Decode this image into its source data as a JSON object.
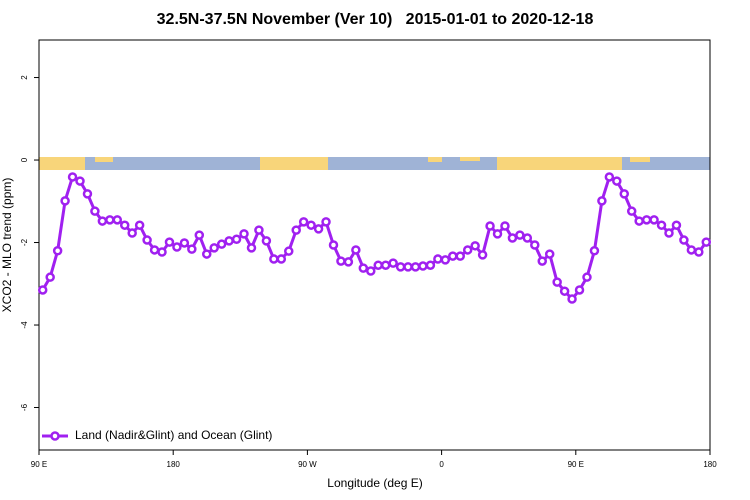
{
  "chart_data": {
    "type": "line",
    "title": "32.5N-37.5N November (Ver 10)   2015-01-01 to 2020-12-18",
    "x_label": "Longitude (deg E)",
    "y_label": "XCO2 - MLO trend (ppm)",
    "xlim": [
      90,
      540
    ],
    "ylim": [
      -7.03,
      2.91
    ],
    "xticks": [
      {
        "value": 90,
        "label": "90 E"
      },
      {
        "value": 180,
        "label": "180"
      },
      {
        "value": 270,
        "label": "90 W"
      },
      {
        "value": 360,
        "label": "0"
      },
      {
        "value": 450,
        "label": "90 E"
      },
      {
        "value": 540,
        "label": "180"
      }
    ],
    "yticks": [
      2,
      0,
      -2,
      -4,
      -6
    ],
    "legend": "bottom-left",
    "x": [
      92.5,
      97.5,
      102.5,
      107.5,
      112.5,
      117.5,
      122.5,
      127.5,
      132.5,
      137.5,
      142.5,
      147.5,
      152.5,
      157.5,
      162.5,
      167.5,
      172.5,
      177.5,
      182.5,
      187.5,
      192.5,
      197.5,
      202.5,
      207.5,
      212.5,
      217.5,
      222.5,
      227.5,
      232.5,
      237.5,
      242.5,
      247.5,
      252.5,
      257.5,
      262.5,
      267.5,
      272.5,
      277.5,
      282.5,
      287.5,
      292.5,
      297.5,
      302.5,
      307.5,
      312.5,
      317.5,
      322.5,
      327.5,
      332.5,
      337.5,
      342.5,
      347.5,
      352.5,
      357.5,
      362.5,
      367.5,
      372.5,
      377.5,
      382.5,
      387.5,
      392.5,
      397.5,
      402.5,
      407.5,
      412.5,
      417.5,
      422.5,
      427.5,
      432.5,
      437.5,
      442.5,
      447.5,
      452.5,
      457.5,
      462.5,
      467.5,
      472.5,
      477.5,
      482.5,
      487.5,
      492.5,
      497.5,
      502.5,
      507.5,
      512.5,
      517.5,
      522.5,
      527.5,
      532.5,
      537.5
    ],
    "series": [
      {
        "name": "Land (Nadir&Glint) and Ocean (Glint)",
        "color": "#a020f0",
        "values": [
          -3.15,
          -2.84,
          -2.2,
          -0.99,
          -0.41,
          -0.51,
          -0.82,
          -1.24,
          -1.48,
          -1.45,
          -1.45,
          -1.58,
          -1.77,
          -1.58,
          -1.94,
          -2.18,
          -2.23,
          -1.99,
          -2.11,
          -2.01,
          -2.16,
          -1.82,
          -2.28,
          -2.13,
          -2.04,
          -1.96,
          -1.92,
          -1.79,
          -2.13,
          -1.7,
          -1.96,
          -2.4,
          -2.4,
          -2.21,
          -1.7,
          -1.5,
          -1.58,
          -1.67,
          -1.5,
          -2.06,
          -2.45,
          -2.47,
          -2.18,
          -2.62,
          -2.69,
          -2.55,
          -2.55,
          -2.5,
          -2.59,
          -2.59,
          -2.59,
          -2.57,
          -2.55,
          -2.4,
          -2.42,
          -2.33,
          -2.33,
          -2.18,
          -2.08,
          -2.3,
          -1.6,
          -1.79,
          -1.6,
          -1.89,
          -1.82,
          -1.89,
          -2.06,
          -2.45,
          -2.28,
          -2.96,
          -3.18,
          -3.37,
          -3.15,
          -2.84,
          -2.2,
          -0.99,
          -0.41,
          -0.51,
          -0.82,
          -1.24,
          -1.48,
          -1.45,
          -1.45,
          -1.58,
          -1.77,
          -1.58,
          -1.94,
          -2.18,
          -2.23,
          -1.99
        ]
      }
    ]
  }
}
